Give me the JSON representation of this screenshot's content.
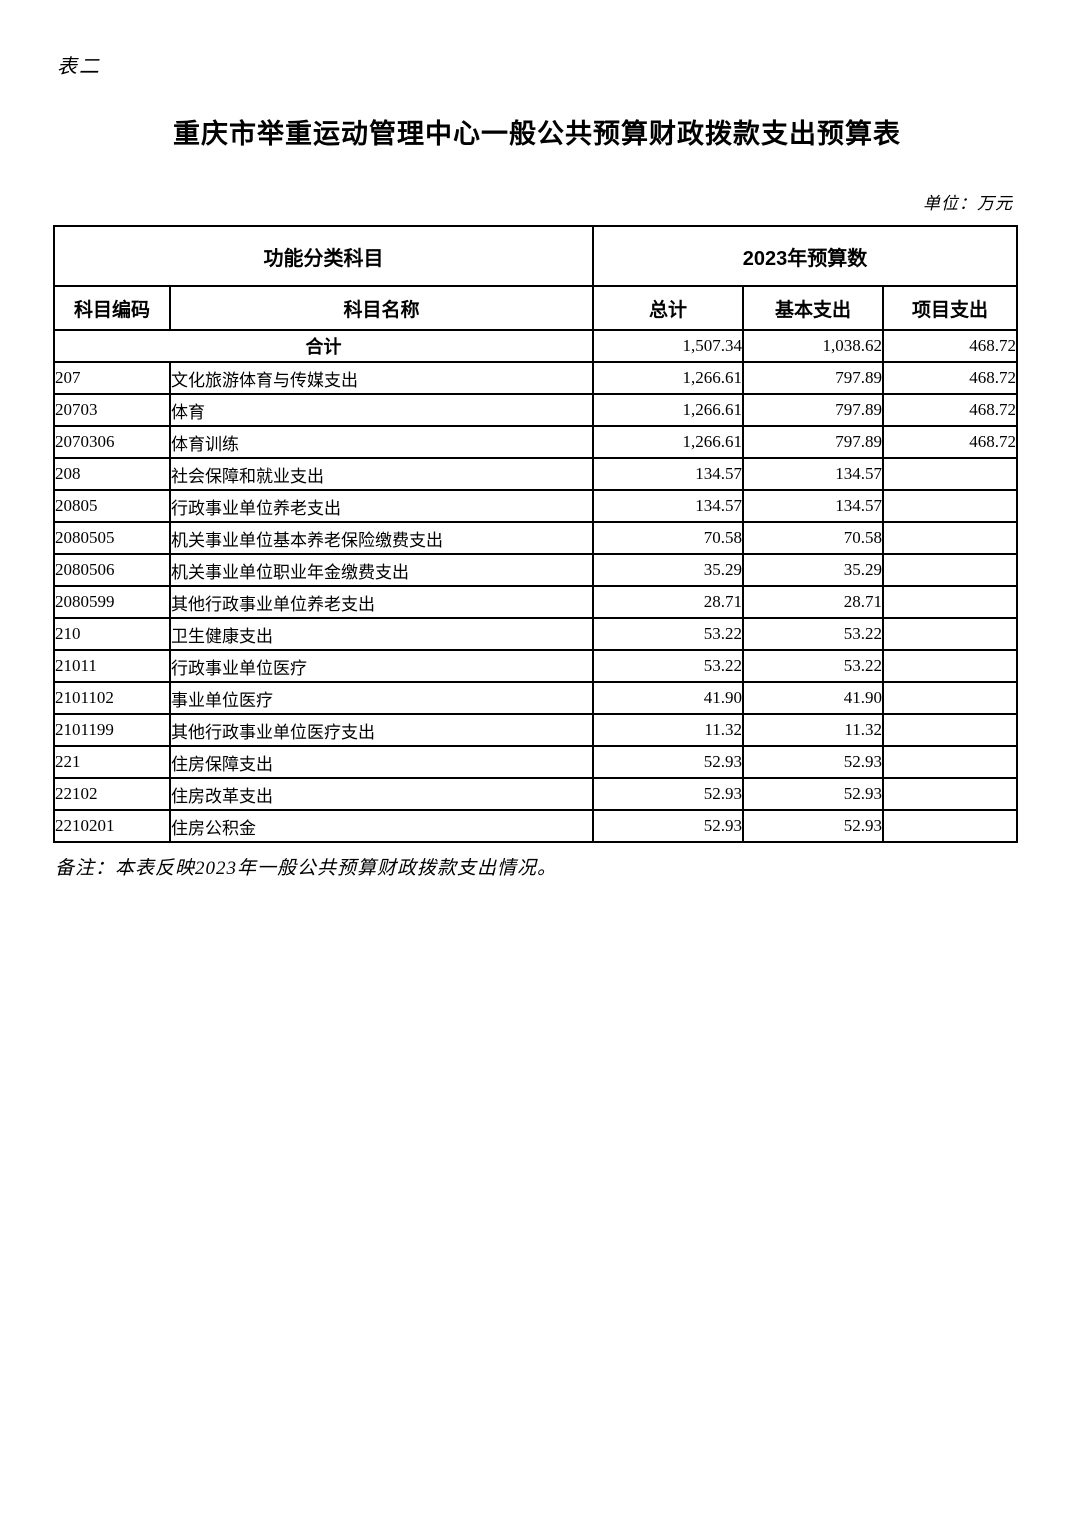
{
  "page": {
    "corner_label": "表二",
    "title": "重庆市举重运动管理中心一般公共预算财政拨款支出预算表",
    "unit_note": "单位：万元",
    "footer_note": "备注：本表反映2023年一般公共预算财政拨款支出情况。"
  },
  "table": {
    "header": {
      "group_left": "功能分类科目",
      "group_right": "2023年预算数",
      "columns": [
        "科目编码",
        "科目名称",
        "总计",
        "基本支出",
        "项目支出"
      ]
    },
    "rows": [
      {
        "label": "合计",
        "total": "1,507.34",
        "basic": "1,038.62",
        "project": "468.72"
      },
      {
        "code": "207",
        "level": 0,
        "name": "文化旅游体育与传媒支出",
        "total": "1,266.61",
        "basic": "797.89",
        "project": "468.72"
      },
      {
        "code": "20703",
        "level": 1,
        "name": "体育",
        "total": "1,266.61",
        "basic": "797.89",
        "project": "468.72"
      },
      {
        "code": "2070306",
        "level": 2,
        "name": "体育训练",
        "total": "1,266.61",
        "basic": "797.89",
        "project": "468.72"
      },
      {
        "code": "208",
        "level": 0,
        "name": "社会保障和就业支出",
        "total": "134.57",
        "basic": "134.57",
        "project": ""
      },
      {
        "code": "20805",
        "level": 1,
        "name": "行政事业单位养老支出",
        "total": "134.57",
        "basic": "134.57",
        "project": ""
      },
      {
        "code": "2080505",
        "level": 2,
        "name": "机关事业单位基本养老保险缴费支出",
        "total": "70.58",
        "basic": "70.58",
        "project": ""
      },
      {
        "code": "2080506",
        "level": 2,
        "name": "机关事业单位职业年金缴费支出",
        "total": "35.29",
        "basic": "35.29",
        "project": ""
      },
      {
        "code": "2080599",
        "level": 2,
        "name": "其他行政事业单位养老支出",
        "total": "28.71",
        "basic": "28.71",
        "project": ""
      },
      {
        "code": "210",
        "level": 0,
        "name": "卫生健康支出",
        "total": "53.22",
        "basic": "53.22",
        "project": ""
      },
      {
        "code": "21011",
        "level": 1,
        "name": "行政事业单位医疗",
        "total": "53.22",
        "basic": "53.22",
        "project": ""
      },
      {
        "code": "2101102",
        "level": 2,
        "name": "事业单位医疗",
        "total": "41.90",
        "basic": "41.90",
        "project": ""
      },
      {
        "code": "2101199",
        "level": 2,
        "name": "其他行政事业单位医疗支出",
        "total": "11.32",
        "basic": "11.32",
        "project": ""
      },
      {
        "code": "221",
        "level": 0,
        "name": "住房保障支出",
        "total": "52.93",
        "basic": "52.93",
        "project": ""
      },
      {
        "code": "22102",
        "level": 1,
        "name": "住房改革支出",
        "total": "52.93",
        "basic": "52.93",
        "project": ""
      },
      {
        "code": "2210201",
        "level": 2,
        "name": "住房公积金",
        "total": "52.93",
        "basic": "52.93",
        "project": ""
      }
    ]
  }
}
